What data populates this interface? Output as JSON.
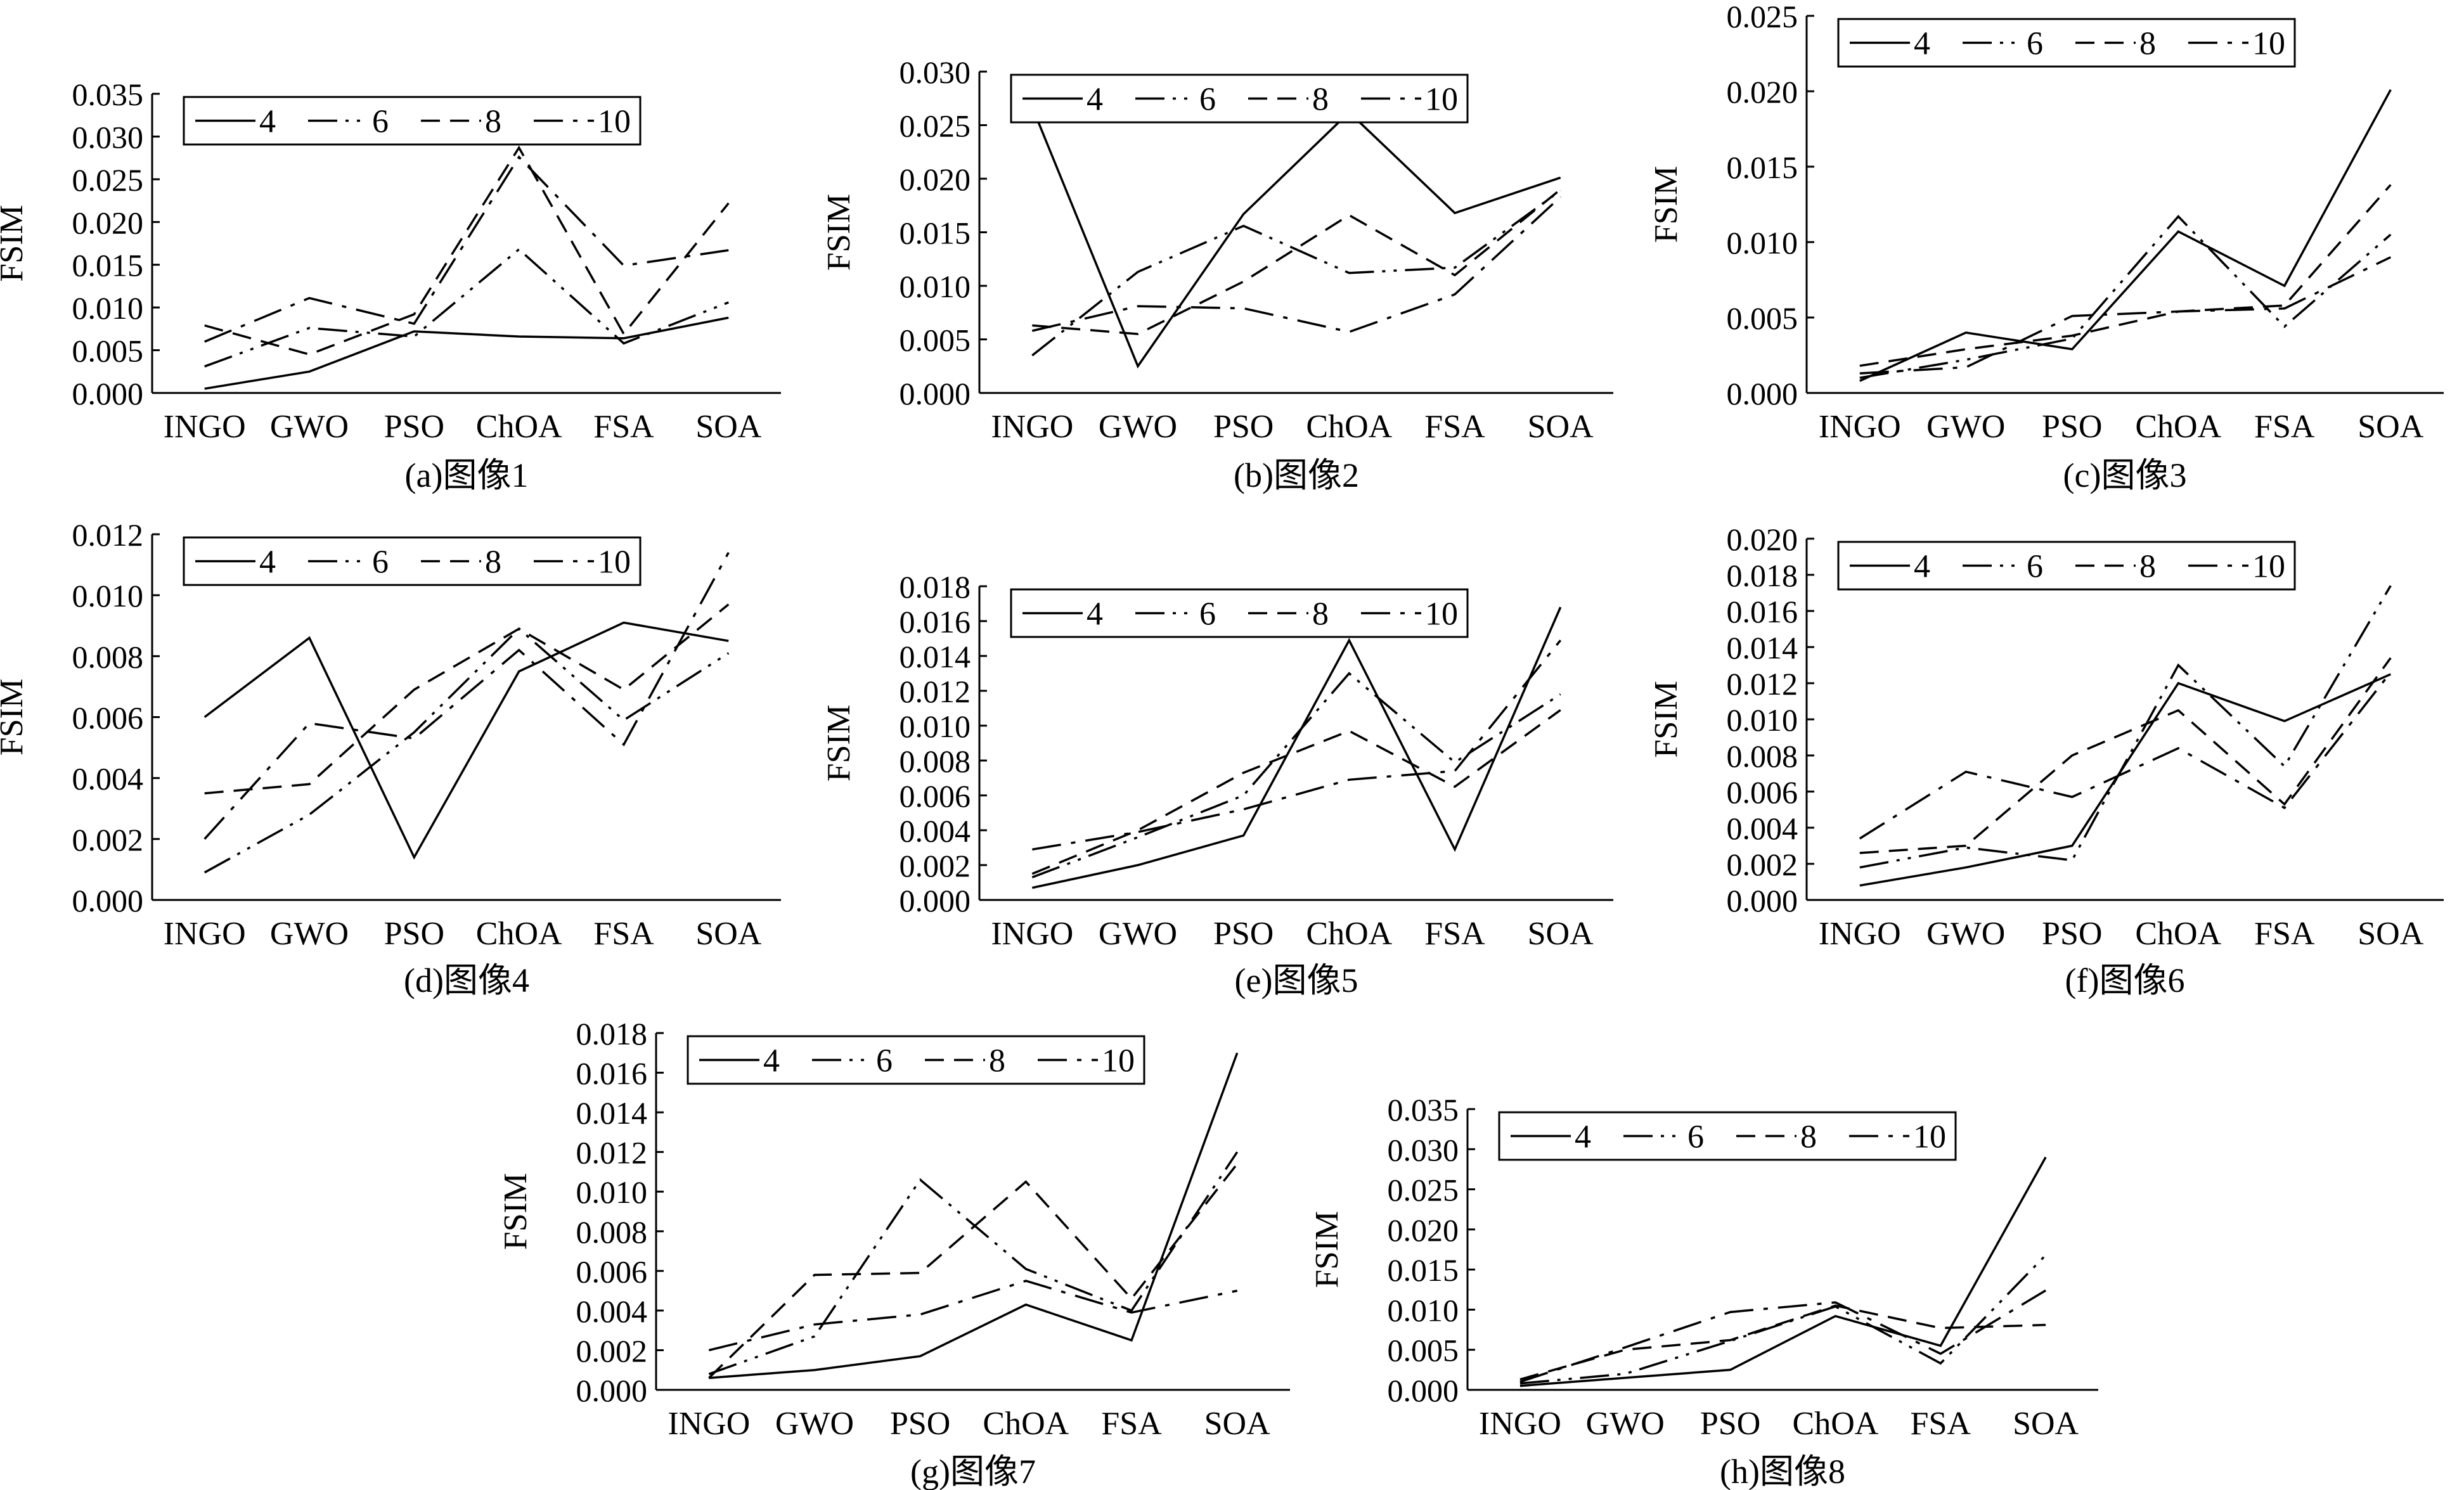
{
  "legend_labels": [
    "4",
    "6",
    "8",
    "10"
  ],
  "categories": [
    "INGO",
    "GWO",
    "PSO",
    "ChOA",
    "FSA",
    "SOA"
  ],
  "ylabel": "FSIM",
  "chart_data": [
    {
      "type": "line",
      "caption": "(a)图像1",
      "ylabel": "FSIM",
      "categories": [
        "INGO",
        "GWO",
        "PSO",
        "ChOA",
        "FSA",
        "SOA"
      ],
      "ylim": [
        0,
        0.035
      ],
      "yticks": [
        "0.000",
        "0.005",
        "0.010",
        "0.015",
        "0.020",
        "0.025",
        "0.030",
        "0.035"
      ],
      "series": [
        {
          "name": "4",
          "values": [
            0.0005,
            0.0025,
            0.0072,
            0.0066,
            0.0064,
            0.0088
          ]
        },
        {
          "name": "6",
          "values": [
            0.0031,
            0.0076,
            0.0066,
            0.0168,
            0.0058,
            0.0106
          ]
        },
        {
          "name": "8",
          "values": [
            0.0079,
            0.0045,
            0.0092,
            0.0287,
            0.0069,
            0.0222
          ]
        },
        {
          "name": "10",
          "values": [
            0.006,
            0.0111,
            0.0081,
            0.0276,
            0.0149,
            0.0167
          ]
        }
      ]
    },
    {
      "type": "line",
      "caption": "(b)图像2",
      "ylabel": "FSIM",
      "categories": [
        "INGO",
        "GWO",
        "PSO",
        "ChOA",
        "FSA",
        "SOA"
      ],
      "ylim": [
        0,
        0.03
      ],
      "yticks": [
        "0.000",
        "0.005",
        "0.010",
        "0.015",
        "0.020",
        "0.025",
        "0.030"
      ],
      "series": [
        {
          "name": "4",
          "values": [
            0.0267,
            0.0025,
            0.0167,
            0.0262,
            0.0168,
            0.0201
          ]
        },
        {
          "name": "6",
          "values": [
            0.0035,
            0.0113,
            0.0156,
            0.0112,
            0.0117,
            0.0189
          ]
        },
        {
          "name": "8",
          "values": [
            0.0063,
            0.0055,
            0.0104,
            0.0166,
            0.011,
            0.019
          ]
        },
        {
          "name": "10",
          "values": [
            0.0058,
            0.0081,
            0.0079,
            0.0057,
            0.0092,
            0.0183
          ]
        }
      ]
    },
    {
      "type": "line",
      "caption": "(c)图像3",
      "ylabel": "FSIM",
      "categories": [
        "INGO",
        "GWO",
        "PSO",
        "ChOA",
        "FSA",
        "SOA"
      ],
      "ylim": [
        0,
        0.025
      ],
      "yticks": [
        "0.000",
        "0.005",
        "0.010",
        "0.015",
        "0.020",
        "0.025"
      ],
      "series": [
        {
          "name": "4",
          "values": [
            0.0008,
            0.004,
            0.0029,
            0.0107,
            0.0071,
            0.0201
          ]
        },
        {
          "name": "6",
          "values": [
            0.001,
            0.0022,
            0.0036,
            0.0117,
            0.0044,
            0.0105
          ]
        },
        {
          "name": "8",
          "values": [
            0.0018,
            0.0029,
            0.0038,
            0.0054,
            0.0058,
            0.0138
          ]
        },
        {
          "name": "10",
          "values": [
            0.0013,
            0.0017,
            0.0051,
            0.0054,
            0.0056,
            0.009
          ]
        }
      ]
    },
    {
      "type": "line",
      "caption": "(d)图像4",
      "ylabel": "FSIM",
      "categories": [
        "INGO",
        "GWO",
        "PSO",
        "ChOA",
        "FSA",
        "SOA"
      ],
      "ylim": [
        0,
        0.012
      ],
      "yticks": [
        "0.000",
        "0.002",
        "0.004",
        "0.006",
        "0.008",
        "0.010",
        "0.012"
      ],
      "series": [
        {
          "name": "4",
          "values": [
            0.006,
            0.0086,
            0.0014,
            0.0075,
            0.0091,
            0.0085
          ]
        },
        {
          "name": "6",
          "values": [
            0.0009,
            0.0028,
            0.0055,
            0.0089,
            0.0059,
            0.0081
          ]
        },
        {
          "name": "8",
          "values": [
            0.0035,
            0.0038,
            0.0069,
            0.0089,
            0.0069,
            0.0097
          ]
        },
        {
          "name": "10",
          "values": [
            0.002,
            0.0058,
            0.0053,
            0.0082,
            0.0051,
            0.0114
          ]
        }
      ]
    },
    {
      "type": "line",
      "caption": "(e)图像5",
      "ylabel": "FSIM",
      "categories": [
        "INGO",
        "GWO",
        "PSO",
        "ChOA",
        "FSA",
        "SOA"
      ],
      "ylim": [
        0,
        0.018
      ],
      "yticks": [
        "0.000",
        "0.002",
        "0.004",
        "0.006",
        "0.008",
        "0.010",
        "0.012",
        "0.014",
        "0.016",
        "0.018"
      ],
      "series": [
        {
          "name": "4",
          "values": [
            0.0007,
            0.002,
            0.0037,
            0.0149,
            0.0029,
            0.0168
          ]
        },
        {
          "name": "6",
          "values": [
            0.0013,
            0.0036,
            0.006,
            0.013,
            0.0079,
            0.0118
          ]
        },
        {
          "name": "8",
          "values": [
            0.0015,
            0.004,
            0.0073,
            0.0097,
            0.0065,
            0.0109
          ]
        },
        {
          "name": "10",
          "values": [
            0.0029,
            0.0039,
            0.0052,
            0.0069,
            0.0074,
            0.0149
          ]
        }
      ]
    },
    {
      "type": "line",
      "caption": "(f)图像6",
      "ylabel": "FSIM",
      "categories": [
        "INGO",
        "GWO",
        "PSO",
        "ChOA",
        "FSA",
        "SOA"
      ],
      "ylim": [
        0,
        0.02
      ],
      "yticks": [
        "0.000",
        "0.002",
        "0.004",
        "0.006",
        "0.008",
        "0.010",
        "0.012",
        "0.014",
        "0.016",
        "0.018",
        "0.020"
      ],
      "series": [
        {
          "name": "4",
          "values": [
            0.0008,
            0.0018,
            0.003,
            0.012,
            0.0099,
            0.0125
          ]
        },
        {
          "name": "6",
          "values": [
            0.0018,
            0.0029,
            0.0022,
            0.013,
            0.0074,
            0.0174
          ]
        },
        {
          "name": "8",
          "values": [
            0.0026,
            0.003,
            0.008,
            0.0105,
            0.0053,
            0.0134
          ]
        },
        {
          "name": "10",
          "values": [
            0.0034,
            0.0071,
            0.0057,
            0.0084,
            0.0051,
            0.0126
          ]
        }
      ]
    },
    {
      "type": "line",
      "caption": "(g)图像7",
      "ylabel": "FSIM",
      "categories": [
        "INGO",
        "GWO",
        "PSO",
        "ChOA",
        "FSA",
        "SOA"
      ],
      "ylim": [
        0,
        0.018
      ],
      "yticks": [
        "0.000",
        "0.002",
        "0.004",
        "0.006",
        "0.008",
        "0.010",
        "0.012",
        "0.014",
        "0.016",
        "0.018"
      ],
      "series": [
        {
          "name": "4",
          "values": [
            0.0006,
            0.001,
            0.0017,
            0.0043,
            0.0025,
            0.017
          ]
        },
        {
          "name": "6",
          "values": [
            0.0008,
            0.0027,
            0.0106,
            0.0061,
            0.004,
            0.012
          ]
        },
        {
          "name": "8",
          "values": [
            0.0006,
            0.0058,
            0.0059,
            0.0105,
            0.0046,
            0.0114
          ]
        },
        {
          "name": "10",
          "values": [
            0.002,
            0.0033,
            0.0038,
            0.0055,
            0.0039,
            0.005
          ]
        }
      ]
    },
    {
      "type": "line",
      "caption": "(h)图像8",
      "ylabel": "FSIM",
      "categories": [
        "INGO",
        "GWO",
        "PSO",
        "ChOA",
        "FSA",
        "SOA"
      ],
      "ylim": [
        0,
        0.035
      ],
      "yticks": [
        "0.000",
        "0.005",
        "0.010",
        "0.015",
        "0.020",
        "0.025",
        "0.030",
        "0.035"
      ],
      "series": [
        {
          "name": "4",
          "values": [
            0.0005,
            0.0015,
            0.0025,
            0.0092,
            0.0055,
            0.029
          ]
        },
        {
          "name": "6",
          "values": [
            0.0008,
            0.002,
            0.0061,
            0.0104,
            0.0033,
            0.0168
          ]
        },
        {
          "name": "8",
          "values": [
            0.0013,
            0.005,
            0.0062,
            0.0105,
            0.0077,
            0.0081
          ]
        },
        {
          "name": "10",
          "values": [
            0.001,
            0.0053,
            0.0097,
            0.0109,
            0.0045,
            0.0124
          ]
        }
      ]
    }
  ]
}
